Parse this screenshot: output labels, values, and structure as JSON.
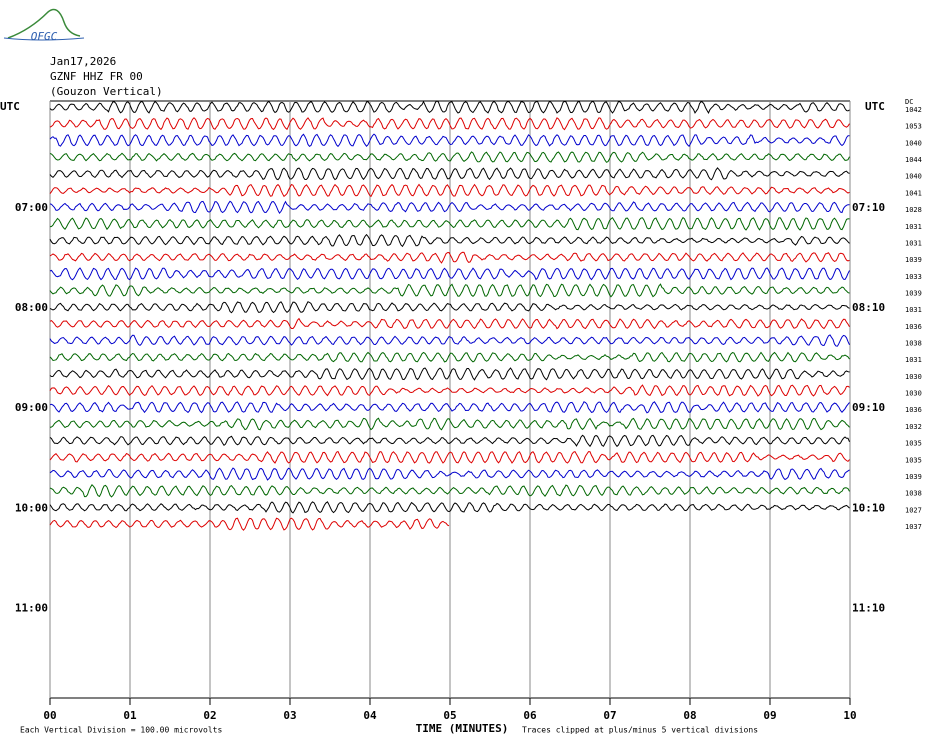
{
  "header": {
    "logo": "OFGC",
    "date": "Jan17,2026",
    "station": "GZNF HHZ FR 00",
    "location": "(Gouzon Vertical)"
  },
  "left_labels": [
    "UTC",
    "07:00",
    "08:00",
    "09:00",
    "10:00",
    "11:00"
  ],
  "right_labels": [
    "UTC",
    "07:10",
    "08:10",
    "09:10",
    "10:10",
    "11:10"
  ],
  "dc_label": "DC",
  "trace_dc": [
    1042,
    1053,
    1040,
    1044,
    1040,
    1041,
    1028,
    1031,
    1031,
    1039,
    1033,
    1039,
    1031,
    1036,
    1038,
    1031,
    1030,
    1030,
    1036,
    1032,
    1035,
    1035,
    1039,
    1038,
    1027,
    1037
  ],
  "x_ticks": [
    "00",
    "01",
    "02",
    "03",
    "04",
    "05",
    "06",
    "07",
    "08",
    "09",
    "10"
  ],
  "x_axis_label": "TIME (MINUTES)",
  "footer_left": "Each Vertical Division =  100.00 microvolts",
  "footer_right": "Traces clipped at plus/minus 5 vertical divisions"
}
